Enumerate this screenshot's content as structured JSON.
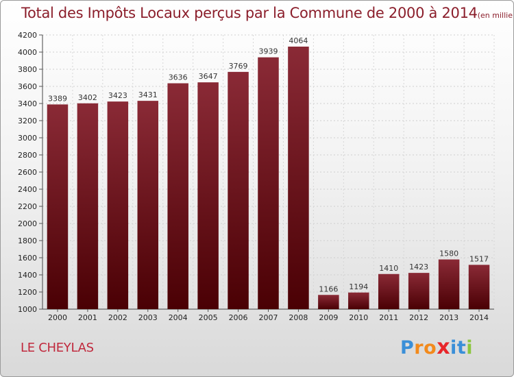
{
  "header": {
    "title": "Total des Impôts Locaux perçus par la Commune de 2000 à 2014",
    "unit": "(en milliers d'€)"
  },
  "footer": {
    "commune": "LE CHEYLAS",
    "brand": [
      "P",
      "r",
      "o",
      "x",
      "i",
      "t",
      "i"
    ]
  },
  "colors": {
    "bar_top": "#8a2a36",
    "bar_bottom": "#4a0004",
    "title": "#8b1e2b",
    "commune": "#c0283c",
    "brand": [
      "#3a8fd8",
      "#f28a1c",
      "#f28a1c",
      "#e8262b",
      "#3a8fd8",
      "#3a8fd8",
      "#8cc63f"
    ]
  },
  "chart_data": {
    "type": "bar",
    "title": "Total des Impôts Locaux perçus par la Commune de 2000 à 2014",
    "xlabel": "",
    "ylabel": "en milliers d'€",
    "categories": [
      "2000",
      "2001",
      "2002",
      "2003",
      "2004",
      "2005",
      "2006",
      "2007",
      "2008",
      "2009",
      "2010",
      "2011",
      "2012",
      "2013",
      "2014"
    ],
    "values": [
      3389,
      3402,
      3423,
      3431,
      3636,
      3647,
      3769,
      3939,
      4064,
      1166,
      1194,
      1410,
      1423,
      1580,
      1517
    ],
    "ylim": [
      1000,
      4200
    ],
    "yticks": [
      1000,
      1200,
      1400,
      1600,
      1800,
      2000,
      2200,
      2400,
      2600,
      2800,
      3000,
      3200,
      3400,
      3600,
      3800,
      4000,
      4200
    ],
    "grid": true
  }
}
